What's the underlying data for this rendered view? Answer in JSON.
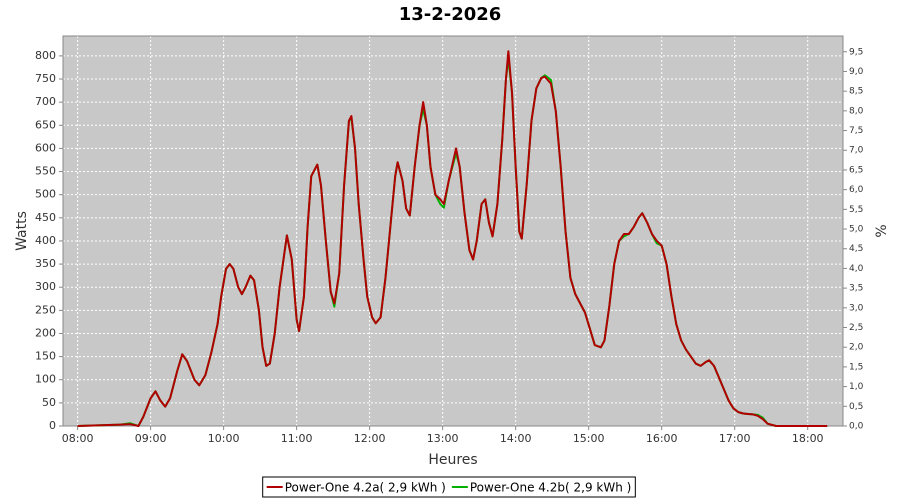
{
  "chart_data": {
    "type": "line",
    "title": "13-2-2026",
    "x_label": "Heures",
    "y_label": "Watts",
    "y2_label": "%",
    "background": "#c8c8c8",
    "grid": true,
    "x": [
      "08:00",
      "08:35",
      "08:43",
      "08:50",
      "08:54",
      "09:00",
      "09:04",
      "09:08",
      "09:12",
      "09:16",
      "09:22",
      "09:26",
      "09:30",
      "09:36",
      "09:40",
      "09:45",
      "09:50",
      "09:55",
      "09:58",
      "10:02",
      "10:05",
      "10:08",
      "10:12",
      "10:15",
      "10:18",
      "10:22",
      "10:25",
      "10:29",
      "10:32",
      "10:35",
      "10:38",
      "10:42",
      "10:46",
      "10:50",
      "10:52",
      "10:56",
      "11:00",
      "11:02",
      "11:06",
      "11:09",
      "11:12",
      "11:17",
      "11:20",
      "11:24",
      "11:28",
      "11:31",
      "11:35",
      "11:39",
      "11:43",
      "11:45",
      "11:48",
      "11:51",
      "11:55",
      "11:58",
      "12:02",
      "12:05",
      "12:09",
      "12:13",
      "12:17",
      "12:21",
      "12:23",
      "12:27",
      "12:30",
      "12:33",
      "12:37",
      "12:41",
      "12:44",
      "12:47",
      "12:50",
      "12:54",
      "12:58",
      "13:01",
      "13:05",
      "13:11",
      "13:14",
      "13:18",
      "13:22",
      "13:25",
      "13:28",
      "13:32",
      "13:35",
      "13:38",
      "13:41",
      "13:45",
      "13:49",
      "13:52",
      "13:54",
      "13:57",
      "14:00",
      "14:03",
      "14:05",
      "14:09",
      "14:13",
      "14:17",
      "14:21",
      "14:24",
      "14:29",
      "14:33",
      "14:37",
      "14:41",
      "14:45",
      "14:49",
      "14:53",
      "14:57",
      "15:01",
      "15:05",
      "15:10",
      "15:13",
      "15:17",
      "15:21",
      "15:25",
      "15:29",
      "15:33",
      "15:37",
      "15:41",
      "15:44",
      "15:48",
      "15:52",
      "15:56",
      "16:00",
      "16:04",
      "16:08",
      "16:12",
      "16:16",
      "16:20",
      "16:24",
      "16:28",
      "16:32",
      "16:36",
      "16:39",
      "16:43",
      "16:47",
      "16:51",
      "16:55",
      "16:59",
      "17:03",
      "17:07",
      "17:11",
      "17:15",
      "17:19",
      "17:23",
      "17:27",
      "17:34",
      "18:16"
    ],
    "series": [
      {
        "name": "Power-One 4.2a( 2,9 kWh )",
        "color": "#b00000",
        "values": [
          0,
          3,
          4,
          0,
          20,
          60,
          75,
          55,
          42,
          60,
          120,
          155,
          140,
          100,
          88,
          110,
          160,
          220,
          280,
          340,
          350,
          340,
          300,
          285,
          300,
          325,
          315,
          250,
          170,
          130,
          135,
          200,
          300,
          375,
          412,
          360,
          230,
          205,
          280,
          430,
          540,
          565,
          520,
          400,
          290,
          265,
          330,
          520,
          660,
          670,
          600,
          480,
          360,
          280,
          235,
          222,
          235,
          320,
          430,
          540,
          570,
          530,
          470,
          455,
          560,
          650,
          700,
          650,
          560,
          500,
          490,
          480,
          530,
          600,
          560,
          460,
          380,
          360,
          400,
          480,
          490,
          440,
          410,
          480,
          620,
          750,
          810,
          720,
          560,
          420,
          405,
          520,
          660,
          730,
          752,
          755,
          740,
          680,
          560,
          420,
          320,
          285,
          265,
          245,
          210,
          175,
          170,
          185,
          260,
          350,
          400,
          415,
          415,
          430,
          450,
          460,
          440,
          415,
          400,
          390,
          350,
          280,
          220,
          185,
          165,
          150,
          135,
          130,
          138,
          142,
          130,
          105,
          80,
          55,
          38,
          30,
          27,
          26,
          25,
          22,
          15,
          5,
          0,
          0
        ]
      },
      {
        "name": "Power-One 4.2b( 2,9 kWh )",
        "color": "#00b000",
        "values": [
          0,
          3,
          6,
          0,
          20,
          60,
          75,
          55,
          42,
          60,
          120,
          155,
          140,
          100,
          88,
          110,
          160,
          220,
          280,
          340,
          350,
          340,
          300,
          285,
          300,
          325,
          315,
          250,
          170,
          130,
          135,
          200,
          300,
          375,
          412,
          360,
          230,
          205,
          280,
          430,
          540,
          565,
          520,
          400,
          290,
          258,
          330,
          520,
          660,
          665,
          600,
          480,
          360,
          280,
          235,
          222,
          235,
          320,
          430,
          540,
          570,
          530,
          470,
          455,
          560,
          650,
          685,
          650,
          560,
          500,
          480,
          472,
          530,
          590,
          560,
          460,
          380,
          360,
          400,
          480,
          490,
          440,
          410,
          480,
          620,
          750,
          795,
          720,
          560,
          420,
          405,
          520,
          660,
          730,
          752,
          758,
          748,
          680,
          560,
          420,
          320,
          285,
          265,
          245,
          210,
          175,
          170,
          185,
          260,
          350,
          400,
          410,
          415,
          430,
          450,
          460,
          440,
          415,
          395,
          390,
          350,
          280,
          220,
          185,
          165,
          150,
          135,
          130,
          138,
          142,
          130,
          105,
          80,
          55,
          38,
          30,
          27,
          26,
          25,
          24,
          18,
          5,
          0,
          0
        ]
      }
    ],
    "xlim": [
      "07:48",
      "18:29"
    ],
    "xticks": [
      "08:00",
      "09:00",
      "10:00",
      "11:00",
      "12:00",
      "13:00",
      "14:00",
      "15:00",
      "16:00",
      "17:00",
      "18:00"
    ],
    "ylim": [
      0,
      843
    ],
    "yticks": [
      0,
      50,
      100,
      150,
      200,
      250,
      300,
      350,
      400,
      450,
      500,
      550,
      600,
      650,
      700,
      750,
      800
    ],
    "y2lim": [
      0,
      9.9
    ],
    "y2ticks": [
      {
        "value": 0,
        "label": "0,0"
      },
      {
        "value": 0.5,
        "label": "0,5"
      },
      {
        "value": 1,
        "label": "1,0"
      },
      {
        "value": 1.5,
        "label": "1,5"
      },
      {
        "value": 2,
        "label": "2,0"
      },
      {
        "value": 2.5,
        "label": "2,5"
      },
      {
        "value": 3,
        "label": "3,0"
      },
      {
        "value": 3.5,
        "label": "3,5"
      },
      {
        "value": 4,
        "label": "4,0"
      },
      {
        "value": 4.5,
        "label": "4,5"
      },
      {
        "value": 5,
        "label": "5,0"
      },
      {
        "value": 5.5,
        "label": "5,5"
      },
      {
        "value": 6,
        "label": "6,0"
      },
      {
        "value": 6.5,
        "label": "6,5"
      },
      {
        "value": 7,
        "label": "7,0"
      },
      {
        "value": 7.5,
        "label": "7,5"
      },
      {
        "value": 8,
        "label": "8,0"
      },
      {
        "value": 8.5,
        "label": "8,5"
      },
      {
        "value": 9,
        "label": "9,0"
      },
      {
        "value": 9.5,
        "label": "9,5"
      }
    ]
  }
}
